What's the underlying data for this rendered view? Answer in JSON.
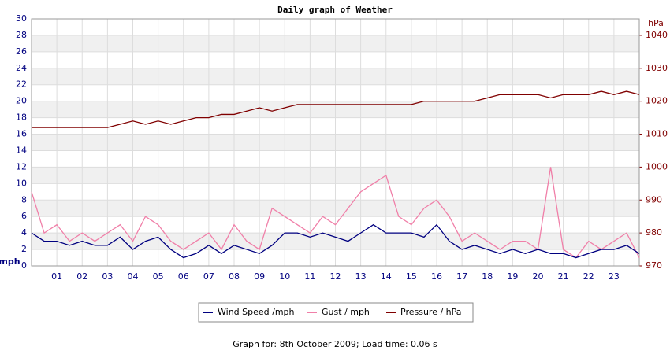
{
  "chart_data": {
    "type": "line",
    "title": "Daily graph of Weather",
    "y_label": "mph",
    "y2_label": "hPa",
    "footer": "Graph for: 8th October 2009; Load time: 0.06 s",
    "x": [
      0,
      0.5,
      1,
      1.5,
      2,
      2.5,
      3,
      3.5,
      4,
      4.5,
      5,
      5.5,
      6,
      6.5,
      7,
      7.5,
      8,
      8.5,
      9,
      9.5,
      10,
      10.5,
      11,
      11.5,
      12,
      12.5,
      13,
      13.5,
      14,
      14.5,
      15,
      15.5,
      16,
      16.5,
      17,
      17.5,
      18,
      18.5,
      19,
      19.5,
      20,
      20.5,
      21,
      21.5,
      22,
      22.5,
      23,
      23.5,
      24
    ],
    "series": [
      {
        "name": "Wind Speed /mph",
        "color": "#000080",
        "values": [
          4,
          3,
          3,
          2.5,
          3,
          2.5,
          2.5,
          3.5,
          2,
          3,
          3.5,
          2,
          1,
          1.5,
          2.5,
          1.5,
          2.5,
          2,
          1.5,
          2.5,
          4,
          4,
          3.5,
          4,
          3.5,
          3,
          4,
          5,
          4,
          4,
          4,
          3.5,
          5,
          3,
          2,
          2.5,
          2,
          1.5,
          2,
          1.5,
          2,
          1.5,
          1.5,
          1,
          1.5,
          2,
          2,
          2.5,
          1.5
        ]
      },
      {
        "name": "Gust / mph",
        "color": "#f07fa8",
        "values": [
          9,
          4,
          5,
          3,
          4,
          3,
          4,
          5,
          3,
          6,
          5,
          3,
          2,
          3,
          4,
          2,
          5,
          3,
          2,
          7,
          6,
          5,
          4,
          6,
          5,
          7,
          9,
          10,
          11,
          6,
          5,
          7,
          8,
          6,
          3,
          4,
          3,
          2,
          3,
          3,
          2,
          12,
          2,
          1,
          3,
          2,
          3,
          4,
          1
        ]
      },
      {
        "name": "Pressure / hPa",
        "color": "#800000",
        "axis": "y2",
        "values": [
          1012,
          1012,
          1012,
          1012,
          1012,
          1012,
          1012,
          1013,
          1014,
          1013,
          1014,
          1013,
          1014,
          1015,
          1015,
          1016,
          1016,
          1017,
          1018,
          1017,
          1018,
          1019,
          1019,
          1019,
          1019,
          1019,
          1019,
          1019,
          1019,
          1019,
          1019,
          1020,
          1020,
          1020,
          1020,
          1020,
          1021,
          1022,
          1022,
          1022,
          1022,
          1021,
          1022,
          1022,
          1022,
          1023,
          1022,
          1023,
          1022
        ]
      }
    ],
    "xlim": [
      0,
      24
    ],
    "xticks": [
      {
        "value": 1,
        "label": "01"
      },
      {
        "value": 2,
        "label": "02"
      },
      {
        "value": 3,
        "label": "03"
      },
      {
        "value": 4,
        "label": "04"
      },
      {
        "value": 5,
        "label": "05"
      },
      {
        "value": 6,
        "label": "06"
      },
      {
        "value": 7,
        "label": "07"
      },
      {
        "value": 8,
        "label": "08"
      },
      {
        "value": 9,
        "label": "09"
      },
      {
        "value": 10,
        "label": "10"
      },
      {
        "value": 11,
        "label": "11"
      },
      {
        "value": 12,
        "label": "12"
      },
      {
        "value": 13,
        "label": "13"
      },
      {
        "value": 14,
        "label": "14"
      },
      {
        "value": 15,
        "label": "15"
      },
      {
        "value": 16,
        "label": "16"
      },
      {
        "value": 17,
        "label": "17"
      },
      {
        "value": 18,
        "label": "18"
      },
      {
        "value": 19,
        "label": "19"
      },
      {
        "value": 20,
        "label": "20"
      },
      {
        "value": 21,
        "label": "21"
      },
      {
        "value": 22,
        "label": "22"
      },
      {
        "value": 23,
        "label": "23"
      }
    ],
    "ylim": [
      0,
      30
    ],
    "yticks": [
      0,
      2,
      4,
      6,
      8,
      10,
      12,
      14,
      16,
      18,
      20,
      22,
      24,
      26,
      28,
      30
    ],
    "y2lim": [
      970,
      1045
    ],
    "y2ticks": [
      970,
      980,
      990,
      1000,
      1010,
      1020,
      1030,
      1040
    ],
    "grid": true
  }
}
